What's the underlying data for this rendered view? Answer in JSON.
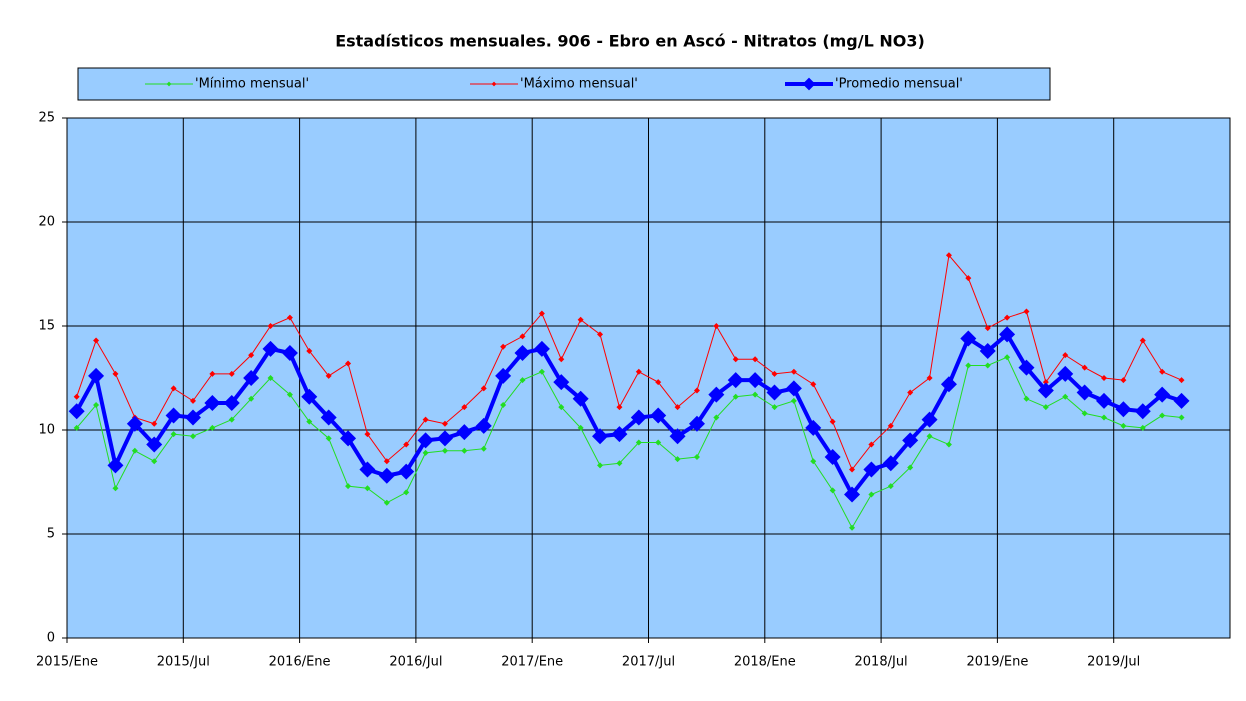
{
  "chart_data": {
    "type": "line",
    "title": "Estadísticos mensuales. 906 - Ebro en Ascó - Nitratos (mg/L NO3)",
    "categories": [
      "2015/Ene",
      null,
      null,
      null,
      null,
      null,
      "2015/Jul",
      null,
      null,
      null,
      null,
      null,
      "2016/Ene",
      null,
      null,
      null,
      null,
      null,
      "2016/Jul",
      null,
      null,
      null,
      null,
      null,
      "2017/Ene",
      null,
      null,
      null,
      null,
      null,
      "2017/Jul",
      null,
      null,
      null,
      null,
      null,
      "2018/Ene",
      null,
      null,
      null,
      null,
      null,
      "2018/Jul",
      null,
      null,
      null,
      null,
      null,
      "2019/Ene",
      null,
      null,
      null,
      null,
      null,
      "2019/Jul",
      null,
      null,
      null,
      null,
      null
    ],
    "series": [
      {
        "name": "'Mínimo mensual'",
        "color": "#22dd22",
        "values": [
          10.1,
          11.2,
          7.2,
          9.0,
          8.5,
          9.8,
          9.7,
          10.1,
          10.5,
          11.5,
          12.5,
          11.7,
          10.4,
          9.6,
          7.3,
          7.2,
          6.5,
          7.0,
          8.9,
          9.0,
          9.0,
          9.1,
          11.2,
          12.4,
          12.8,
          11.1,
          10.1,
          8.3,
          8.4,
          9.4,
          9.4,
          8.6,
          8.7,
          10.6,
          11.6,
          11.7,
          11.1,
          11.4,
          8.5,
          7.1,
          5.3,
          6.9,
          7.3,
          8.2,
          9.7,
          9.3,
          13.1,
          13.1,
          13.5,
          11.5,
          11.1,
          11.6,
          10.8,
          10.6,
          10.2,
          10.1,
          10.7,
          10.6,
          null,
          null
        ]
      },
      {
        "name": "'Máximo mensual'",
        "color": "#ff0000",
        "values": [
          11.6,
          14.3,
          12.7,
          10.6,
          10.3,
          12.0,
          11.4,
          12.7,
          12.7,
          13.6,
          15.0,
          15.4,
          13.8,
          12.6,
          13.2,
          9.8,
          8.5,
          9.3,
          10.5,
          10.3,
          11.1,
          12.0,
          14.0,
          14.5,
          15.6,
          13.4,
          15.3,
          14.6,
          11.1,
          12.8,
          12.3,
          11.1,
          11.9,
          15.0,
          13.4,
          13.4,
          12.7,
          12.8,
          12.2,
          10.4,
          8.1,
          9.3,
          10.2,
          11.8,
          12.5,
          18.4,
          17.3,
          14.9,
          15.4,
          15.7,
          12.3,
          13.6,
          13.0,
          12.5,
          12.4,
          14.3,
          12.8,
          12.4,
          null,
          null
        ]
      },
      {
        "name": "'Promedio mensual'",
        "color": "#0000ff",
        "values": [
          10.9,
          12.6,
          8.3,
          10.3,
          9.3,
          10.7,
          10.6,
          11.3,
          11.3,
          12.5,
          13.9,
          13.7,
          11.6,
          10.6,
          9.6,
          8.1,
          7.8,
          8.0,
          9.5,
          9.6,
          9.9,
          10.2,
          12.6,
          13.7,
          13.9,
          12.3,
          11.5,
          9.7,
          9.8,
          10.6,
          10.7,
          9.7,
          10.3,
          11.7,
          12.4,
          12.4,
          11.8,
          12.0,
          10.1,
          8.7,
          6.9,
          8.1,
          8.4,
          9.5,
          10.5,
          12.2,
          14.4,
          13.8,
          14.6,
          13.0,
          11.9,
          12.7,
          11.8,
          11.4,
          11.0,
          10.9,
          11.7,
          11.4,
          null,
          null
        ]
      }
    ],
    "ylim": [
      0,
      25
    ],
    "yticks": [
      0,
      5,
      10,
      15,
      20,
      25
    ],
    "grid": true,
    "legend_position": "top"
  }
}
